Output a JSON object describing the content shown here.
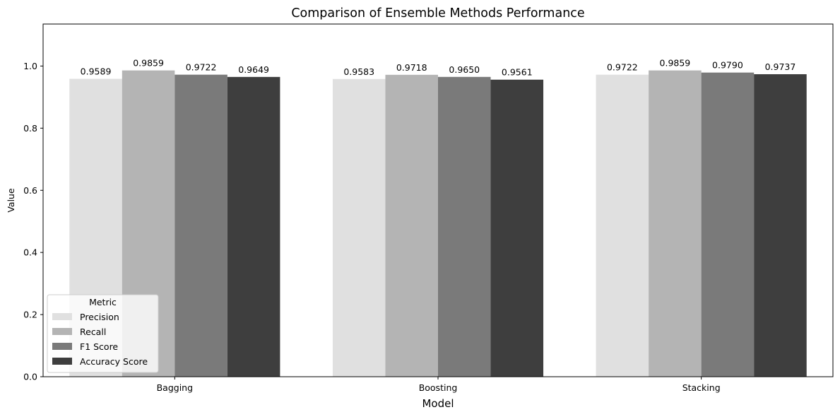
{
  "chart_data": {
    "type": "bar",
    "title": "Comparison of Ensemble Methods Performance",
    "xlabel": "Model",
    "ylabel": "Value",
    "categories": [
      "Bagging",
      "Boosting",
      "Stacking"
    ],
    "series": [
      {
        "name": "Precision",
        "color": "#e0e0e0",
        "values": [
          0.9589,
          0.9583,
          0.9722
        ]
      },
      {
        "name": "Recall",
        "color": "#b4b4b4",
        "values": [
          0.9859,
          0.9718,
          0.9859
        ]
      },
      {
        "name": "F1 Score",
        "color": "#7a7a7a",
        "values": [
          0.9722,
          0.965,
          0.979
        ]
      },
      {
        "name": "Accuracy Score",
        "color": "#3e3e3e",
        "values": [
          0.9649,
          0.9561,
          0.9737
        ]
      }
    ],
    "data_labels": [
      [
        "0.9589",
        "0.9583",
        "0.9722"
      ],
      [
        "0.9859",
        "0.9718",
        "0.9859"
      ],
      [
        "0.9722",
        "0.9650",
        "0.9790"
      ],
      [
        "0.9649",
        "0.9561",
        "0.9737"
      ]
    ],
    "yticks": [
      "0.0",
      "0.2",
      "0.4",
      "0.6",
      "0.8",
      "1.0"
    ],
    "ylim": [
      0,
      1.1352
    ],
    "grid": false,
    "legend": {
      "title": "Metric",
      "placement": "lower-left"
    }
  }
}
